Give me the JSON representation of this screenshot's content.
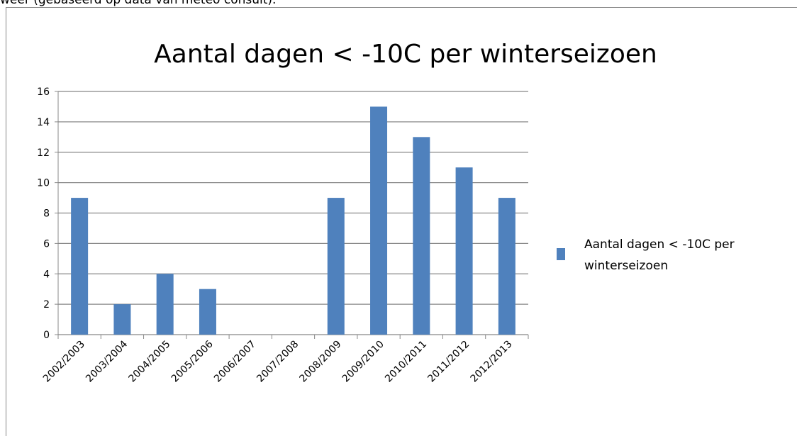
{
  "caption": "weer (gebaseerd op data van meteo consult).",
  "chart_data": {
    "type": "bar",
    "title": "Aantal dagen < -10C per winterseizoen",
    "categories": [
      "2002/2003",
      "2003/2004",
      "2004/2005",
      "2005/2006",
      "2006/2007",
      "2007/2008",
      "2008/2009",
      "2009/2010",
      "2010/2011",
      "2011/2012",
      "2012/2013"
    ],
    "series": [
      {
        "name": "Aantal dagen < -10C per winterseizoen",
        "color": "#4f81bd",
        "values": [
          9,
          2,
          4,
          3,
          0,
          0,
          9,
          15,
          13,
          11,
          9
        ]
      }
    ],
    "ylim": [
      0,
      16
    ],
    "yticks": [
      0,
      2,
      4,
      6,
      8,
      10,
      12,
      14,
      16
    ],
    "grid": true,
    "legend": "right"
  }
}
